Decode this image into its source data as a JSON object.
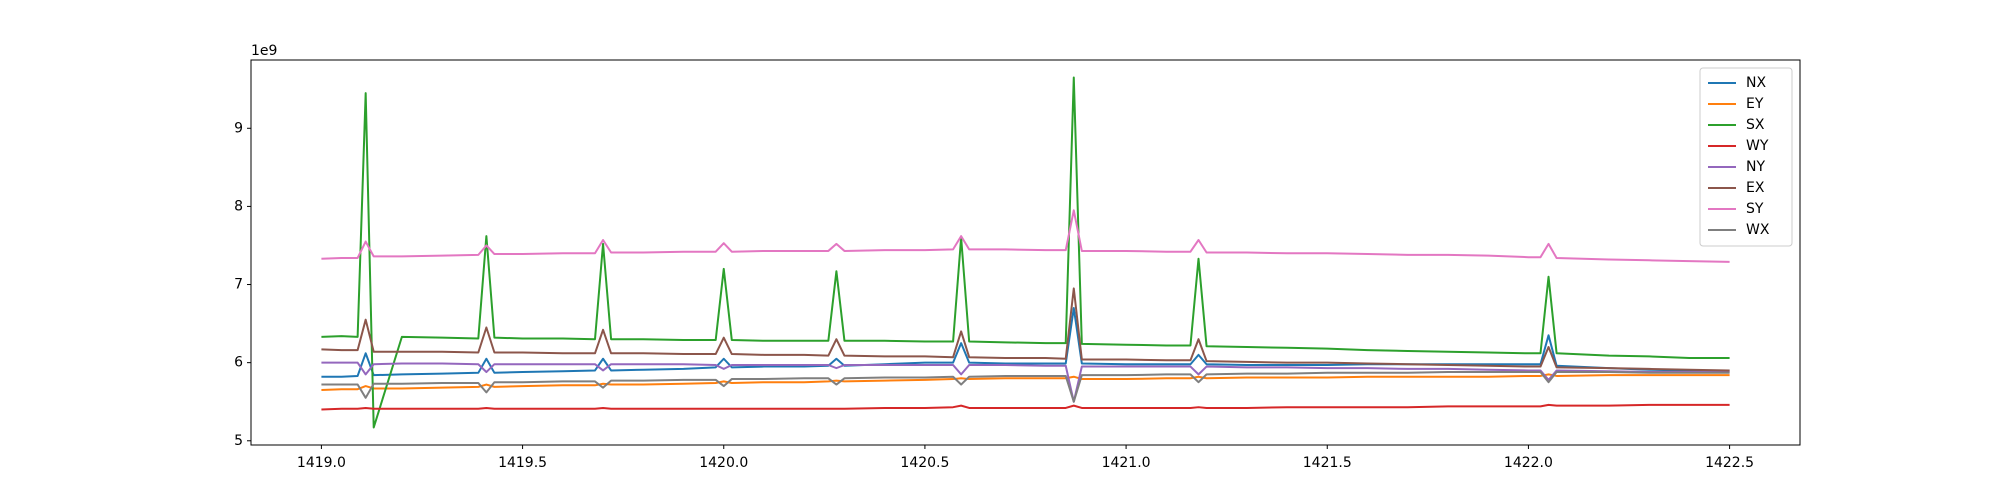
{
  "chart_data": {
    "type": "line",
    "y_offset_label": "1e9",
    "x": [
      1419.0,
      1419.05,
      1419.09,
      1419.11,
      1419.13,
      1419.2,
      1419.3,
      1419.39,
      1419.41,
      1419.43,
      1419.5,
      1419.6,
      1419.68,
      1419.7,
      1419.72,
      1419.8,
      1419.9,
      1419.98,
      1420.0,
      1420.02,
      1420.1,
      1420.2,
      1420.26,
      1420.28,
      1420.3,
      1420.4,
      1420.5,
      1420.57,
      1420.59,
      1420.61,
      1420.7,
      1420.8,
      1420.85,
      1420.87,
      1420.89,
      1421.0,
      1421.1,
      1421.16,
      1421.18,
      1421.2,
      1421.3,
      1421.4,
      1421.5,
      1421.6,
      1421.7,
      1421.8,
      1421.9,
      1422.0,
      1422.03,
      1422.05,
      1422.07,
      1422.2,
      1422.3,
      1422.4,
      1422.5
    ],
    "series": [
      {
        "name": "NX",
        "color": "#1f77b4",
        "values": [
          5.82,
          5.82,
          5.83,
          6.12,
          5.84,
          5.85,
          5.86,
          5.87,
          6.05,
          5.87,
          5.88,
          5.89,
          5.9,
          6.05,
          5.9,
          5.91,
          5.92,
          5.94,
          6.05,
          5.94,
          5.95,
          5.95,
          5.96,
          6.05,
          5.96,
          5.98,
          6.0,
          6.0,
          6.25,
          6.0,
          5.99,
          5.99,
          5.99,
          6.7,
          5.99,
          5.98,
          5.98,
          5.98,
          6.1,
          5.98,
          5.97,
          5.97,
          5.97,
          5.98,
          5.98,
          5.98,
          5.98,
          5.98,
          5.98,
          6.35,
          5.96,
          5.93,
          5.91,
          5.9,
          5.9
        ]
      },
      {
        "name": "EY",
        "color": "#ff7f0e",
        "values": [
          5.65,
          5.66,
          5.66,
          5.7,
          5.67,
          5.67,
          5.68,
          5.69,
          5.72,
          5.69,
          5.7,
          5.71,
          5.71,
          5.73,
          5.72,
          5.72,
          5.73,
          5.74,
          5.76,
          5.74,
          5.75,
          5.75,
          5.76,
          5.77,
          5.76,
          5.77,
          5.78,
          5.79,
          5.8,
          5.79,
          5.8,
          5.8,
          5.8,
          5.82,
          5.79,
          5.79,
          5.8,
          5.8,
          5.82,
          5.8,
          5.81,
          5.81,
          5.81,
          5.82,
          5.82,
          5.82,
          5.82,
          5.83,
          5.83,
          5.85,
          5.83,
          5.84,
          5.84,
          5.84,
          5.84
        ]
      },
      {
        "name": "SX",
        "color": "#2ca02c",
        "values": [
          6.33,
          6.34,
          6.33,
          9.45,
          5.17,
          6.33,
          6.32,
          6.31,
          7.62,
          6.32,
          6.31,
          6.31,
          6.3,
          7.52,
          6.3,
          6.3,
          6.29,
          6.29,
          7.2,
          6.29,
          6.28,
          6.28,
          6.28,
          7.17,
          6.28,
          6.28,
          6.27,
          6.27,
          7.6,
          6.27,
          6.26,
          6.25,
          6.25,
          9.65,
          6.24,
          6.23,
          6.22,
          6.22,
          7.33,
          6.21,
          6.2,
          6.19,
          6.18,
          6.16,
          6.15,
          6.14,
          6.13,
          6.12,
          6.12,
          7.1,
          6.12,
          6.09,
          6.08,
          6.06,
          6.06
        ]
      },
      {
        "name": "WY",
        "color": "#d62728",
        "values": [
          5.4,
          5.41,
          5.41,
          5.42,
          5.41,
          5.41,
          5.41,
          5.41,
          5.42,
          5.41,
          5.41,
          5.41,
          5.41,
          5.42,
          5.41,
          5.41,
          5.41,
          5.41,
          5.41,
          5.41,
          5.41,
          5.41,
          5.41,
          5.41,
          5.41,
          5.42,
          5.42,
          5.43,
          5.45,
          5.42,
          5.42,
          5.42,
          5.42,
          5.45,
          5.42,
          5.42,
          5.42,
          5.42,
          5.43,
          5.42,
          5.42,
          5.43,
          5.43,
          5.43,
          5.43,
          5.44,
          5.44,
          5.44,
          5.44,
          5.46,
          5.45,
          5.45,
          5.46,
          5.46,
          5.46
        ]
      },
      {
        "name": "NY",
        "color": "#9467bd",
        "values": [
          6.0,
          6.0,
          6.0,
          5.85,
          5.98,
          5.99,
          5.99,
          5.98,
          5.88,
          5.98,
          5.98,
          5.98,
          5.98,
          5.9,
          5.98,
          5.98,
          5.98,
          5.97,
          5.92,
          5.97,
          5.97,
          5.97,
          5.97,
          5.93,
          5.97,
          5.97,
          5.97,
          5.97,
          5.85,
          5.97,
          5.97,
          5.96,
          5.96,
          5.5,
          5.95,
          5.95,
          5.95,
          5.95,
          5.85,
          5.95,
          5.94,
          5.94,
          5.93,
          5.93,
          5.92,
          5.92,
          5.91,
          5.9,
          5.9,
          5.78,
          5.9,
          5.89,
          5.88,
          5.88,
          5.88
        ]
      },
      {
        "name": "EX",
        "color": "#8c564b",
        "values": [
          6.17,
          6.16,
          6.16,
          6.55,
          6.14,
          6.14,
          6.14,
          6.13,
          6.45,
          6.13,
          6.13,
          6.12,
          6.12,
          6.42,
          6.12,
          6.12,
          6.11,
          6.11,
          6.32,
          6.11,
          6.1,
          6.1,
          6.09,
          6.3,
          6.09,
          6.08,
          6.08,
          6.07,
          6.4,
          6.07,
          6.06,
          6.06,
          6.05,
          6.95,
          6.04,
          6.04,
          6.03,
          6.03,
          6.3,
          6.02,
          6.01,
          6.0,
          6.0,
          5.99,
          5.98,
          5.97,
          5.96,
          5.95,
          5.95,
          6.2,
          5.94,
          5.93,
          5.92,
          5.91,
          5.9
        ]
      },
      {
        "name": "SY",
        "color": "#e377c2",
        "values": [
          7.33,
          7.34,
          7.34,
          7.55,
          7.36,
          7.36,
          7.37,
          7.38,
          7.5,
          7.39,
          7.39,
          7.4,
          7.4,
          7.57,
          7.41,
          7.41,
          7.42,
          7.42,
          7.53,
          7.42,
          7.43,
          7.43,
          7.43,
          7.52,
          7.43,
          7.44,
          7.44,
          7.45,
          7.62,
          7.45,
          7.45,
          7.44,
          7.44,
          7.95,
          7.43,
          7.43,
          7.42,
          7.42,
          7.57,
          7.41,
          7.41,
          7.4,
          7.4,
          7.39,
          7.38,
          7.38,
          7.37,
          7.35,
          7.35,
          7.52,
          7.34,
          7.32,
          7.31,
          7.3,
          7.29
        ]
      },
      {
        "name": "WX",
        "color": "#7f7f7f",
        "values": [
          5.72,
          5.72,
          5.72,
          5.55,
          5.73,
          5.73,
          5.74,
          5.74,
          5.62,
          5.75,
          5.75,
          5.76,
          5.76,
          5.68,
          5.77,
          5.77,
          5.78,
          5.78,
          5.7,
          5.79,
          5.79,
          5.8,
          5.8,
          5.72,
          5.8,
          5.81,
          5.81,
          5.82,
          5.72,
          5.82,
          5.83,
          5.83,
          5.83,
          5.5,
          5.84,
          5.84,
          5.85,
          5.85,
          5.75,
          5.85,
          5.86,
          5.86,
          5.87,
          5.87,
          5.87,
          5.88,
          5.88,
          5.88,
          5.88,
          5.75,
          5.88,
          5.88,
          5.87,
          5.87,
          5.87
        ]
      }
    ],
    "xlim": [
      1418.825,
      1422.675
    ],
    "xticks": [
      {
        "value": 1419,
        "label": "1419.0"
      },
      {
        "value": 1419.5,
        "label": "1419.5"
      },
      {
        "value": 1420,
        "label": "1420.0"
      },
      {
        "value": 1420.5,
        "label": "1420.5"
      },
      {
        "value": 1421,
        "label": "1421.0"
      },
      {
        "value": 1421.5,
        "label": "1421.5"
      },
      {
        "value": 1422,
        "label": "1422.0"
      },
      {
        "value": 1422.5,
        "label": "1422.5"
      }
    ],
    "ylim": [
      4.946,
      9.874
    ],
    "yticks": [
      5,
      6,
      7,
      8,
      9
    ],
    "grid": false,
    "legend": "upper right"
  }
}
